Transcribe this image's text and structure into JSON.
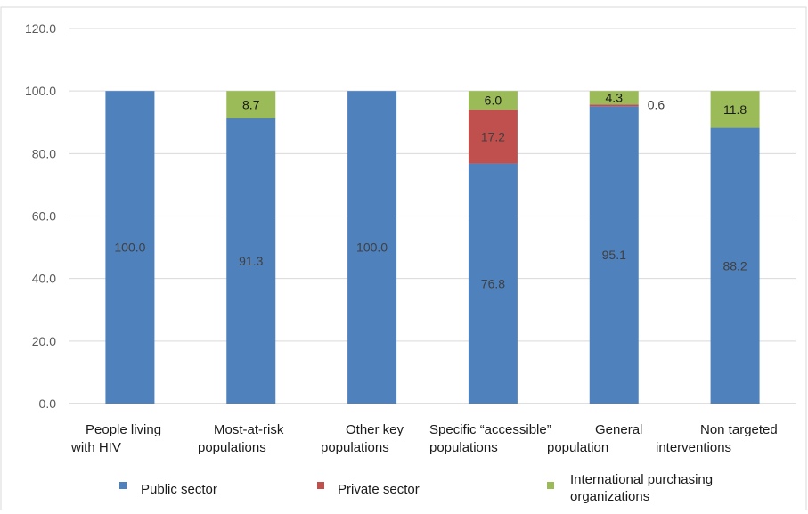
{
  "chart_data": {
    "type": "bar",
    "stacked": true,
    "categories": [
      [
        "People living",
        "with HIV"
      ],
      [
        "Most-at-risk",
        "populations"
      ],
      [
        "Other key",
        "populations"
      ],
      [
        "Specific “accessible”",
        "populations"
      ],
      [
        "General",
        "population"
      ],
      [
        "Non targeted",
        "interventions"
      ]
    ],
    "ylim": [
      0,
      120
    ],
    "yticks": [
      "0.0",
      "20.0",
      "40.0",
      "60.0",
      "80.0",
      "100.0",
      "120.0"
    ],
    "grid": true,
    "legend_position": "bottom",
    "series": [
      {
        "name": "Public sector",
        "color": "#4F81BD",
        "values": [
          100.0,
          91.3,
          100.0,
          76.8,
          95.1,
          88.2
        ],
        "labels": [
          "100.0",
          "91.3",
          "100.0",
          "76.8",
          "95.1",
          "88.2"
        ]
      },
      {
        "name": "Private sector",
        "color": "#C0504D",
        "values": [
          0,
          0,
          0,
          17.2,
          0.6,
          0
        ],
        "labels": [
          "",
          "",
          "",
          "17.2",
          "0.6",
          ""
        ]
      },
      {
        "name": "International purchasing organizations",
        "color": "#9BBB59",
        "values": [
          0,
          8.7,
          0,
          6.0,
          4.3,
          11.8
        ],
        "labels": [
          "",
          "8.7",
          "",
          "6.0",
          "4.3",
          "11.8"
        ]
      }
    ],
    "legend": [
      {
        "lines": [
          "Public sector"
        ],
        "color": "#4F81BD"
      },
      {
        "lines": [
          "Private sector"
        ],
        "color": "#C0504D"
      },
      {
        "lines": [
          "International purchasing",
          "organizations"
        ],
        "color": "#9BBB59"
      }
    ]
  }
}
